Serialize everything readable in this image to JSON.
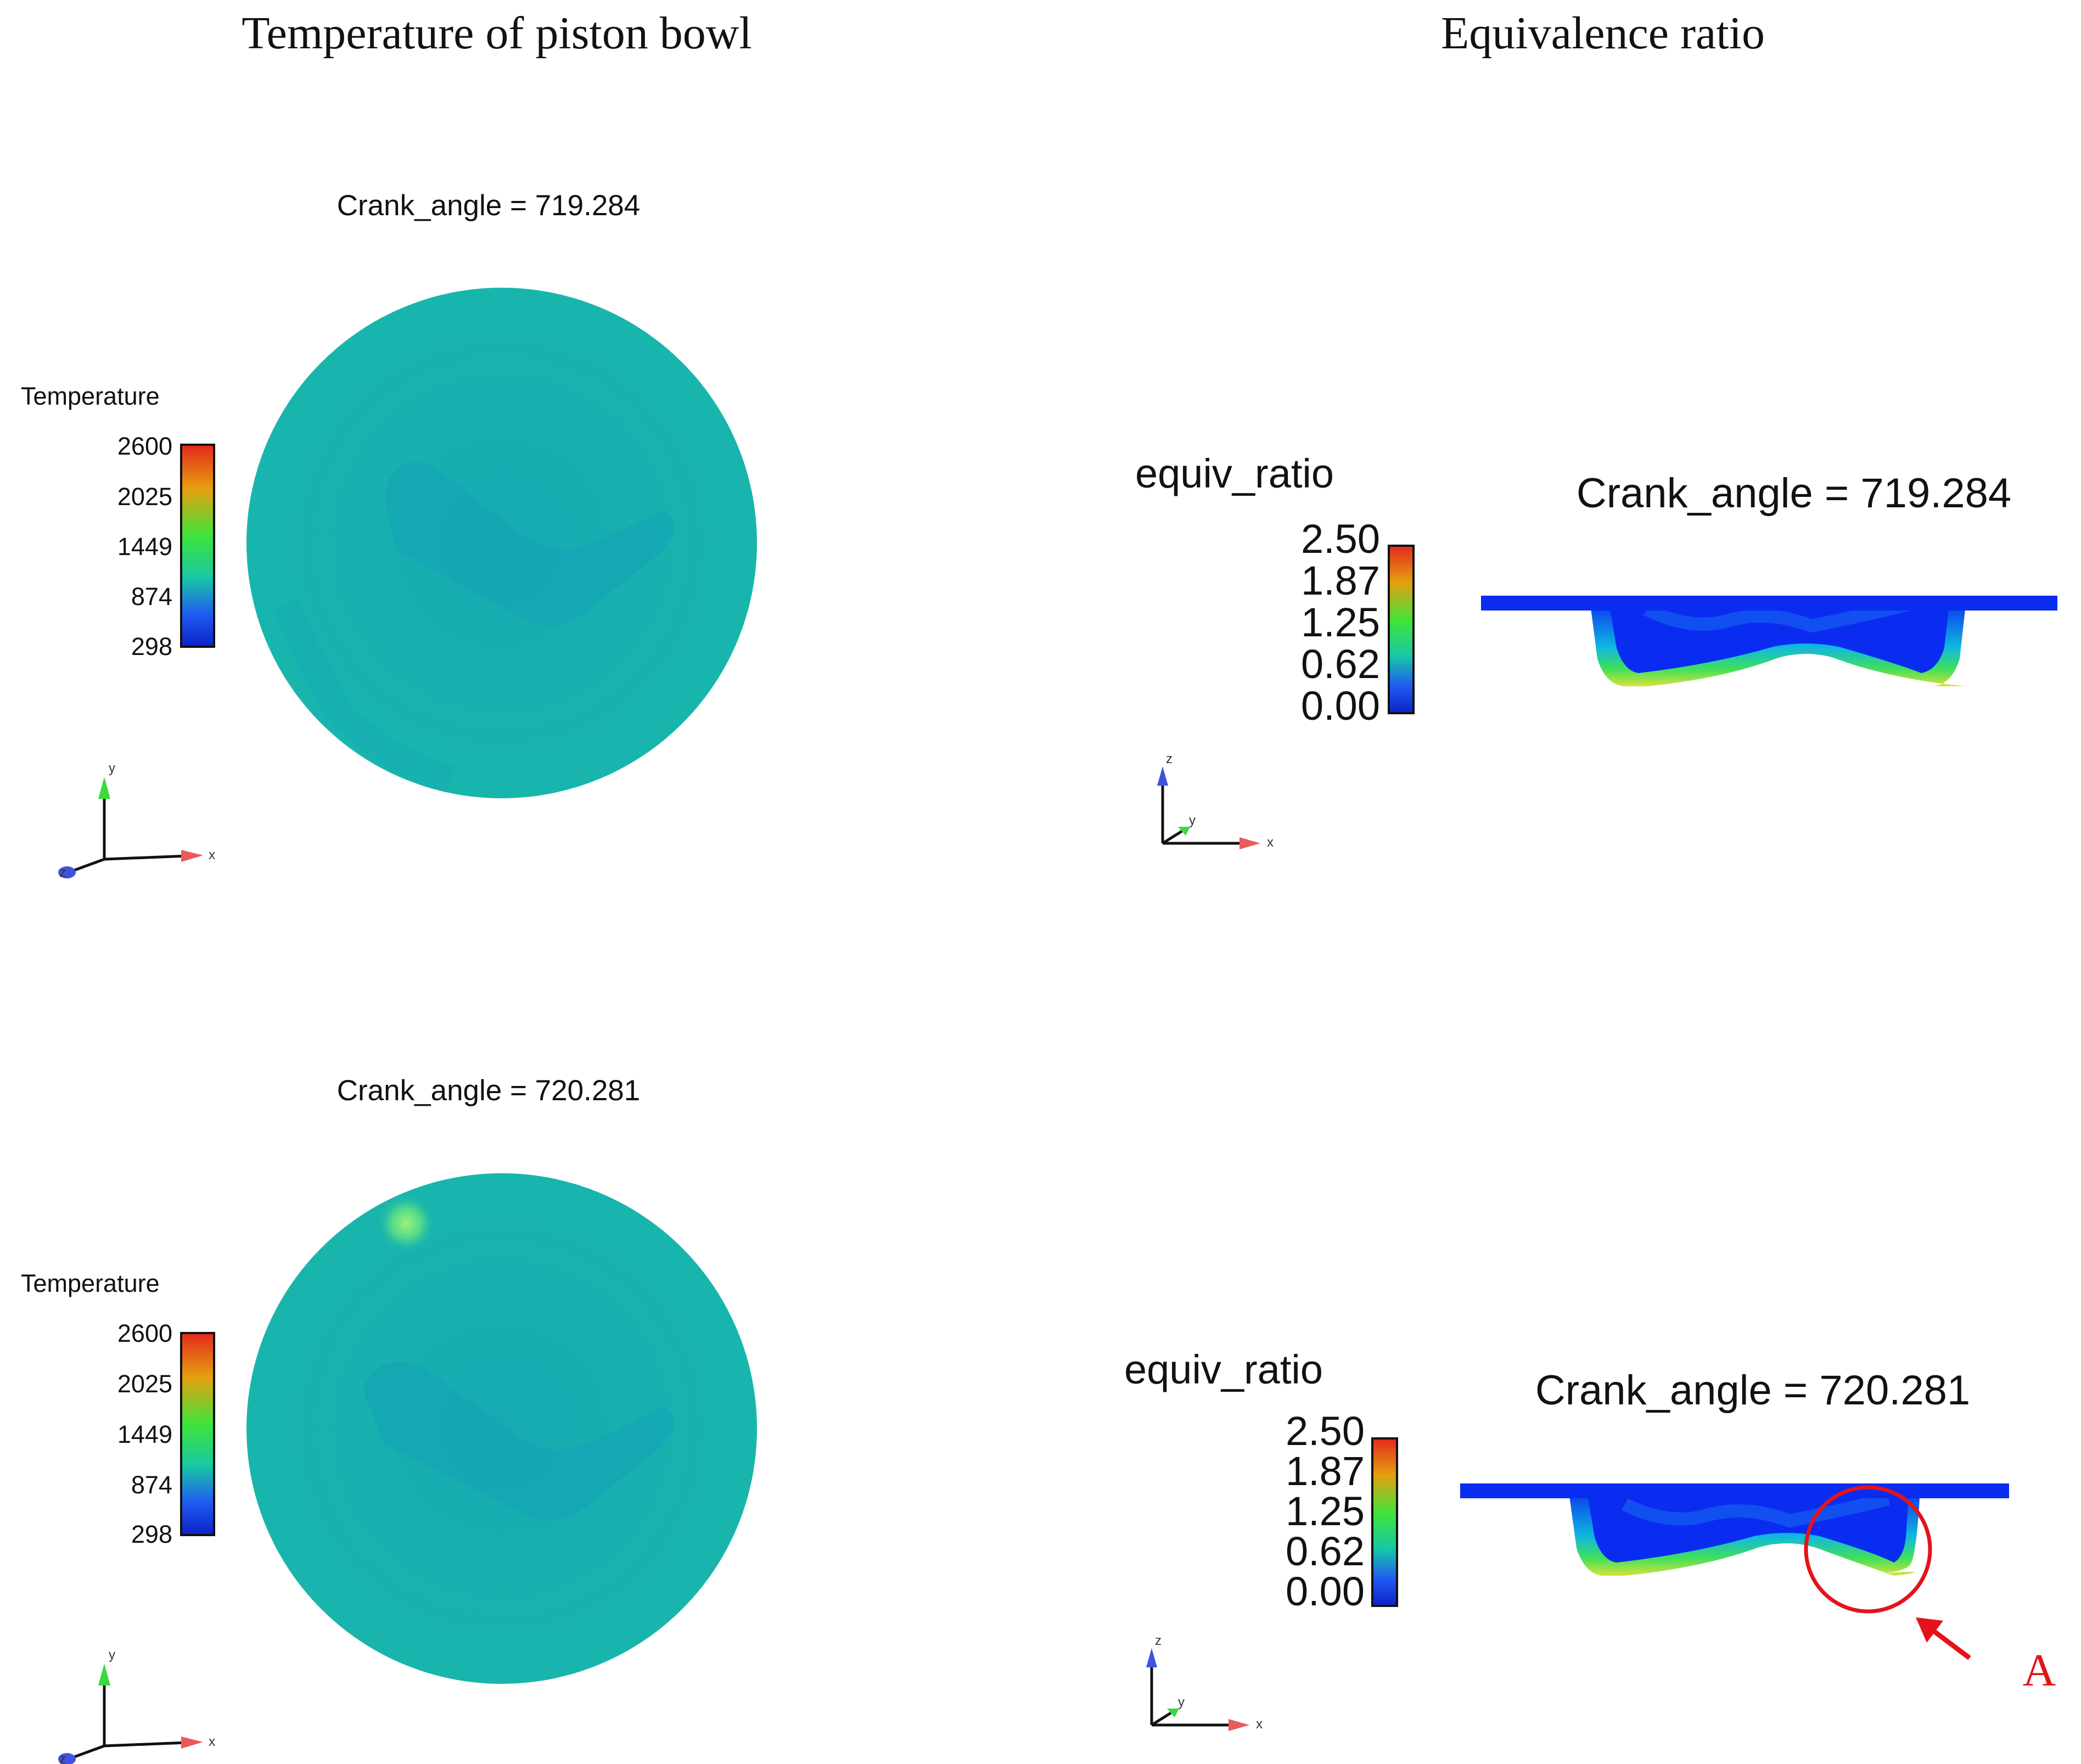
{
  "headers": {
    "left": "Temperature of piston bowl",
    "right": "Equivalence ratio"
  },
  "temperature_panels": [
    {
      "crank_label": "Crank_angle = 719.284",
      "legend_title": "Temperature",
      "ticks": [
        "2600",
        "2025",
        "1449",
        "874",
        "298"
      ],
      "axes": {
        "x": "x",
        "y": "y",
        "z": "z"
      }
    },
    {
      "crank_label": "Crank_angle = 720.281",
      "legend_title": "Temperature",
      "ticks": [
        "2600",
        "2025",
        "1449",
        "874",
        "298"
      ],
      "axes": {
        "x": "x",
        "y": "y",
        "z": "z"
      }
    }
  ],
  "equiv_panels": [
    {
      "crank_label": "Crank_angle = 719.284",
      "legend_title": "equiv_ratio",
      "ticks": [
        "2.50",
        "1.87",
        "1.25",
        "0.62",
        "0.00"
      ],
      "axes": {
        "x": "x",
        "y": "y",
        "z": "z"
      }
    },
    {
      "crank_label": "Crank_angle = 720.281",
      "legend_title": "equiv_ratio",
      "ticks": [
        "2.50",
        "1.87",
        "1.25",
        "0.62",
        "0.00"
      ],
      "axes": {
        "x": "x",
        "y": "y",
        "z": "z"
      },
      "annotation": "A"
    }
  ],
  "colors": {
    "colormap": [
      "#e4281c",
      "#e5a010",
      "#3fe43a",
      "#18c7a6",
      "#1f5bf0",
      "#0d22c8"
    ],
    "piston_surface": "#16b1b0",
    "bowl_fill": "#0a2cf0",
    "annotation": "#e4131a"
  }
}
